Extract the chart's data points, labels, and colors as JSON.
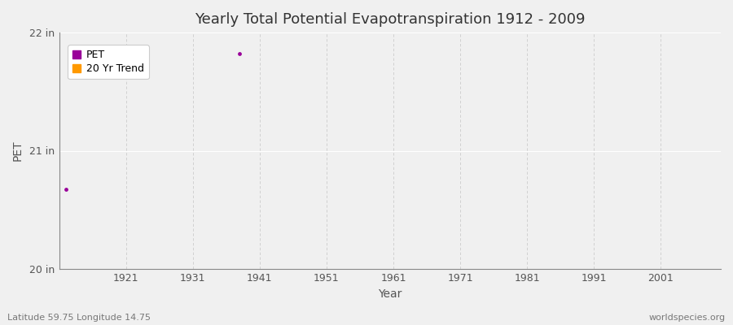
{
  "title": "Yearly Total Potential Evapotranspiration 1912 - 2009",
  "xlabel": "Year",
  "ylabel": "PET",
  "xlim": [
    1911,
    2010
  ],
  "ylim": [
    20,
    22
  ],
  "yticks": [
    20,
    21,
    22
  ],
  "ytick_labels": [
    "20 in",
    "21 in",
    "22 in"
  ],
  "xticks": [
    1921,
    1931,
    1941,
    1951,
    1961,
    1971,
    1981,
    1991,
    2001
  ],
  "pet_color": "#990099",
  "trend_color": "#ff9900",
  "fig_bg_color": "#f0f0f0",
  "plot_bg_color": "#f0f0f0",
  "grid_color_h": "#ffffff",
  "grid_color_v": "#cccccc",
  "data_points": [
    {
      "year": 1912,
      "value": 20.67
    },
    {
      "year": 1938,
      "value": 21.82
    }
  ],
  "footer_left": "Latitude 59.75 Longitude 14.75",
  "footer_right": "worldspecies.org",
  "legend_labels": [
    "PET",
    "20 Yr Trend"
  ]
}
